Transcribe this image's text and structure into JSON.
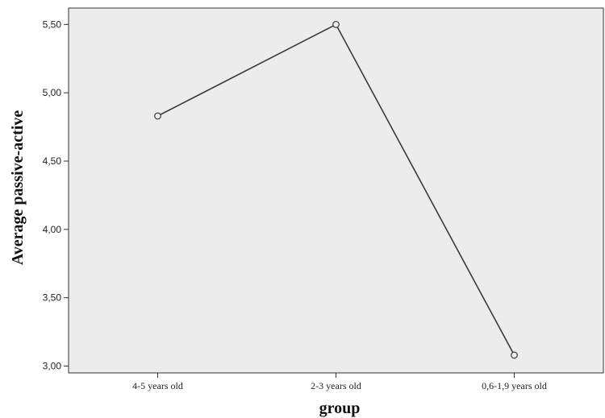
{
  "chart_data": {
    "type": "line",
    "categories": [
      "4-5 years old",
      "2-3 years old",
      "0,6-1,9 years old"
    ],
    "series": [
      {
        "values": [
          4.83,
          5.5,
          3.08
        ]
      }
    ],
    "xlabel": "group",
    "ylabel": "Average passive-active",
    "ylim": [
      2.95,
      5.62
    ],
    "yticks": [
      "3,00",
      "3,50",
      "4,00",
      "4,50",
      "5,00",
      "5,50"
    ],
    "ytick_values": [
      3.0,
      3.5,
      4.0,
      4.5,
      5.0,
      5.5
    ],
    "grid": false,
    "colors": {
      "plot_background": "#ececec",
      "line": "#3a3a3a",
      "axis": "#333333"
    }
  }
}
